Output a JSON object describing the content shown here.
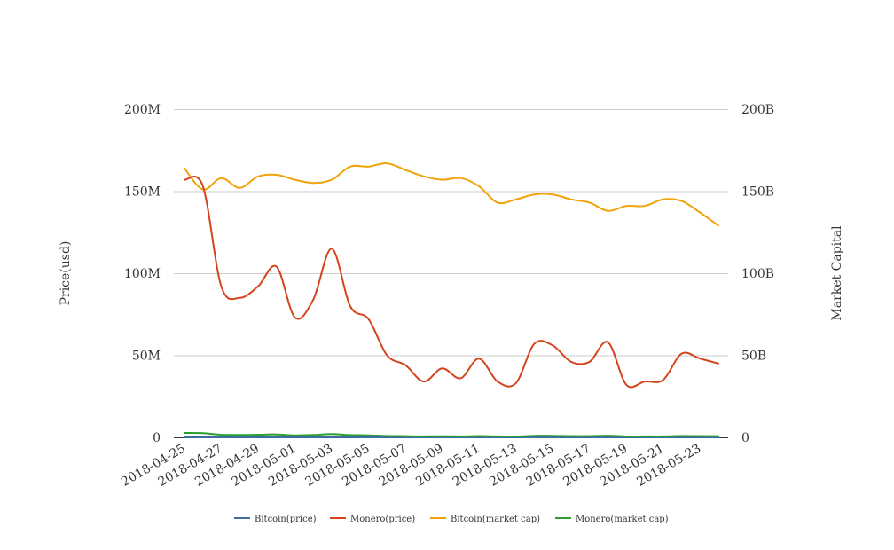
{
  "chart_data": {
    "type": "line",
    "title": "",
    "xlabel": "",
    "ylabel": "Price(usd)",
    "y2label": "Market Capital",
    "x_tick_labels": [
      "2018-04-25",
      "2018-04-27",
      "2018-04-29",
      "2018-05-01",
      "2018-05-03",
      "2018-05-05",
      "2018-05-07",
      "2018-05-09",
      "2018-05-11",
      "2018-05-13",
      "2018-05-15",
      "2018-05-17",
      "2018-05-19",
      "2018-05-21",
      "2018-05-23"
    ],
    "x": [
      "2018-04-25",
      "2018-04-26",
      "2018-04-27",
      "2018-04-28",
      "2018-04-29",
      "2018-04-30",
      "2018-05-01",
      "2018-05-02",
      "2018-05-03",
      "2018-05-04",
      "2018-05-05",
      "2018-05-06",
      "2018-05-07",
      "2018-05-08",
      "2018-05-09",
      "2018-05-10",
      "2018-05-11",
      "2018-05-12",
      "2018-05-13",
      "2018-05-14",
      "2018-05-15",
      "2018-05-16",
      "2018-05-17",
      "2018-05-18",
      "2018-05-19",
      "2018-05-20",
      "2018-05-21",
      "2018-05-22",
      "2018-05-23",
      "2018-05-24"
    ],
    "ylim": [
      0,
      200000000
    ],
    "y2lim": [
      0,
      200000000000
    ],
    "y_ticks": [
      "0",
      "50M",
      "100M",
      "150M",
      "200M"
    ],
    "y2_ticks": [
      "0",
      "50B",
      "100B",
      "150B",
      "200B"
    ],
    "grid": true,
    "legend_position": "bottom",
    "series": [
      {
        "name": "Bitcoin(price)",
        "axis": "left",
        "color": "#3a6ea5",
        "values": [
          9200,
          8900,
          9300,
          9350,
          9400,
          9250,
          9100,
          9000,
          9200,
          9700,
          9800,
          9650,
          9400,
          9200,
          9300,
          9000,
          8400,
          8500,
          8700,
          8650,
          8500,
          8400,
          8050,
          8200,
          8250,
          8500,
          8400,
          8000,
          7600,
          7500
        ]
      },
      {
        "name": "Monero(price)",
        "axis": "left",
        "color": "#d4441c",
        "values": [
          157000000,
          153000000,
          92000000,
          85000000,
          92000000,
          104000000,
          73000000,
          84000000,
          115000000,
          80000000,
          72000000,
          50000000,
          44000000,
          34000000,
          42000000,
          36000000,
          48000000,
          34000000,
          33000000,
          57000000,
          56000000,
          46000000,
          46000000,
          58000000,
          32000000,
          34000000,
          35000000,
          51000000,
          48000000,
          45000000
        ]
      },
      {
        "name": "Bitcoin(market cap)",
        "axis": "right",
        "color": "#f0a30a",
        "values": [
          164000000000,
          151000000000,
          158000000000,
          152000000000,
          159000000000,
          160000000000,
          157000000000,
          155000000000,
          157000000000,
          165000000000,
          165000000000,
          167000000000,
          163000000000,
          159000000000,
          157000000000,
          158000000000,
          153000000000,
          143000000000,
          145000000000,
          148000000000,
          148000000000,
          145000000000,
          143000000000,
          138000000000,
          141000000000,
          141000000000,
          145000000000,
          144000000000,
          137000000000,
          129000000000
        ]
      },
      {
        "name": "Monero(market cap)",
        "axis": "right",
        "color": "#2ca02c",
        "values": [
          2700000000,
          2600000000,
          1600000000,
          1450000000,
          1600000000,
          1800000000,
          1250000000,
          1450000000,
          2000000000,
          1400000000,
          1250000000,
          850000000,
          750000000,
          600000000,
          700000000,
          600000000,
          800000000,
          600000000,
          550000000,
          950000000,
          950000000,
          800000000,
          800000000,
          1000000000,
          550000000,
          600000000,
          600000000,
          850000000,
          800000000,
          750000000
        ]
      }
    ]
  }
}
